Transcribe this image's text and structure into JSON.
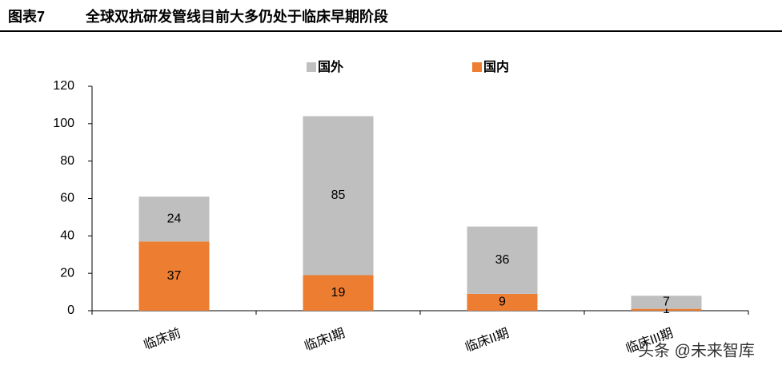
{
  "header": {
    "figure": "图表7",
    "title": "全球双抗研发管线目前大多仍处于临床早期阶段"
  },
  "chart_data": {
    "type": "stacked_bar",
    "categories": [
      "临床前",
      "临床I期",
      "临床II期",
      "临床III期"
    ],
    "series": [
      {
        "name": "国外",
        "color": "#bfbfbf",
        "values": [
          24,
          85,
          36,
          7
        ]
      },
      {
        "name": "国内",
        "color": "#ed7d31",
        "values": [
          37,
          19,
          9,
          1
        ]
      }
    ],
    "ylim": [
      0,
      120
    ],
    "yticks": [
      0,
      20,
      40,
      60,
      80,
      100,
      120
    ],
    "legend": "top"
  },
  "watermark": "头条 @未来智库"
}
